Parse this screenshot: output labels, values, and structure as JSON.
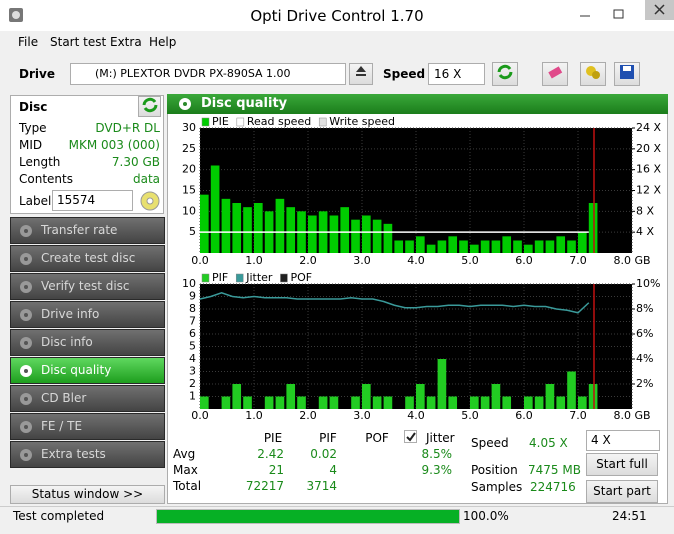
{
  "window": {
    "title": "Opti Drive Control 1.70"
  },
  "menu": [
    "File",
    "Start test",
    "Extra",
    "Help"
  ],
  "toolbar": {
    "drive_label": "Drive",
    "device": "(M:)   PLEXTOR DVDR   PX-890SA 1.00",
    "speed_label": "Speed",
    "speed": "16 X"
  },
  "disc": {
    "title": "Disc",
    "rows": [
      [
        "Type",
        "DVD+R DL"
      ],
      [
        "MID",
        "MKM 003 (000)"
      ],
      [
        "Length",
        "7.30 GB"
      ],
      [
        "Contents",
        "data"
      ]
    ],
    "label_caption": "Label",
    "label_value": "15574"
  },
  "nav": {
    "items": [
      "Transfer rate",
      "Create test disc",
      "Verify test disc",
      "Drive info",
      "Disc info",
      "Disc quality",
      "CD Bler",
      "FE / TE",
      "Extra tests"
    ],
    "selected": 5
  },
  "status_window": "Status window >>",
  "panel": {
    "title": "Disc quality"
  },
  "stats": {
    "columns": [
      "PIE",
      "PIF",
      "POF",
      "Jitter"
    ],
    "jitter_checked": true,
    "avg": {
      "label": "Avg",
      "pie": 2.42,
      "pif": 0.02,
      "jitter": "8.5%"
    },
    "max": {
      "label": "Max",
      "pie": 21,
      "pif": 4,
      "jitter": "9.3%"
    },
    "total": {
      "label": "Total",
      "pie": 72217,
      "pif": 3714
    }
  },
  "run": {
    "speed_label": "Speed",
    "speed": "4.05 X",
    "position_label": "Position",
    "position": "7475 MB",
    "samples_label": "Samples",
    "samples": 224716,
    "speed_select": "4 X",
    "start_full": "Start full",
    "start_part": "Start part"
  },
  "status": {
    "text": "Test completed",
    "progress": 100,
    "progress_label": "100.0%",
    "time": "24:51"
  },
  "chart_data": [
    {
      "type": "bar",
      "grid": true,
      "x": [
        0,
        0.2,
        0.4,
        0.6,
        0.8,
        1,
        1.2,
        1.4,
        1.6,
        1.8,
        2,
        2.2,
        2.4,
        2.6,
        2.8,
        3,
        3.2,
        3.4,
        3.6,
        3.8,
        4,
        4.2,
        4.4,
        4.6,
        4.8,
        5,
        5.2,
        5.4,
        5.6,
        5.8,
        6,
        6.2,
        6.4,
        6.6,
        6.8,
        7,
        7.2
      ],
      "xlim": [
        0,
        8
      ],
      "xticks": [
        {
          "value": 0,
          "label": "0.0"
        },
        {
          "value": 1,
          "label": "1.0"
        },
        {
          "value": 2,
          "label": "2.0"
        },
        {
          "value": 3,
          "label": "3.0"
        },
        {
          "value": 4,
          "label": "4.0"
        },
        {
          "value": 5,
          "label": "5.0"
        },
        {
          "value": 6,
          "label": "6.0"
        },
        {
          "value": 7,
          "label": "7.0"
        },
        {
          "value": 8,
          "label": "8.0 GB"
        }
      ],
      "ylim": [
        0,
        30
      ],
      "yticks": [
        5,
        10,
        15,
        20,
        25,
        30
      ],
      "y2lim": [
        0,
        24
      ],
      "y2ticks": [
        {
          "value": 4,
          "label": "4 X"
        },
        {
          "value": 8,
          "label": "8 X"
        },
        {
          "value": 12,
          "label": "12 X"
        },
        {
          "value": 16,
          "label": "16 X"
        },
        {
          "value": 20,
          "label": "20 X"
        },
        {
          "value": 24,
          "label": "24 X"
        }
      ],
      "series": [
        {
          "name": "PIE",
          "color": "#00cc00",
          "kind": "bar",
          "values": [
            14,
            21,
            13,
            12,
            11,
            12,
            10,
            13,
            11,
            10,
            9,
            10,
            9,
            11,
            8,
            9,
            8,
            7,
            3,
            3,
            4,
            2,
            3,
            4,
            3,
            2,
            3,
            3,
            4,
            3,
            2,
            3,
            3,
            4,
            3,
            5,
            12
          ]
        },
        {
          "name": "Read speed",
          "color": "#ffffff",
          "kind": "line",
          "axis": "y2",
          "values": [
            4,
            4,
            4,
            4,
            4,
            4,
            4,
            4,
            4,
            4,
            4,
            4,
            4,
            4,
            4,
            4,
            4,
            4,
            4,
            4,
            4,
            4,
            4,
            4,
            4,
            4,
            4,
            4,
            4,
            4,
            4,
            4,
            4,
            4,
            4,
            4,
            4
          ]
        },
        {
          "name": "Write speed",
          "color": "#e0e0e0",
          "kind": "line",
          "axis": "y2",
          "values": [
            null,
            null,
            null,
            null,
            null,
            null,
            null,
            null,
            null,
            null,
            null,
            null,
            null,
            null,
            null,
            null,
            null,
            null,
            null,
            null,
            null,
            null,
            null,
            null,
            null,
            null,
            null,
            null,
            null,
            null,
            null,
            null,
            null,
            null,
            null,
            null,
            null
          ]
        }
      ]
    },
    {
      "type": "bar",
      "grid": true,
      "x": [
        0,
        0.2,
        0.4,
        0.6,
        0.8,
        1,
        1.2,
        1.4,
        1.6,
        1.8,
        2,
        2.2,
        2.4,
        2.6,
        2.8,
        3,
        3.2,
        3.4,
        3.6,
        3.8,
        4,
        4.2,
        4.4,
        4.6,
        4.8,
        5,
        5.2,
        5.4,
        5.6,
        5.8,
        6,
        6.2,
        6.4,
        6.6,
        6.8,
        7,
        7.2
      ],
      "xlim": [
        0,
        8
      ],
      "xticks": [
        {
          "value": 0,
          "label": "0.0"
        },
        {
          "value": 1,
          "label": "1.0"
        },
        {
          "value": 2,
          "label": "2.0"
        },
        {
          "value": 3,
          "label": "3.0"
        },
        {
          "value": 4,
          "label": "4.0"
        },
        {
          "value": 5,
          "label": "5.0"
        },
        {
          "value": 6,
          "label": "6.0"
        },
        {
          "value": 7,
          "label": "7.0"
        },
        {
          "value": 8,
          "label": "8.0 GB"
        }
      ],
      "ylim": [
        0,
        10
      ],
      "yticks": [
        1,
        2,
        3,
        4,
        5,
        6,
        7,
        8,
        9,
        10
      ],
      "y2lim": [
        0,
        10
      ],
      "y2ticks": [
        {
          "value": 2,
          "label": "2%"
        },
        {
          "value": 4,
          "label": "4%"
        },
        {
          "value": 6,
          "label": "6%"
        },
        {
          "value": 8,
          "label": "8%"
        },
        {
          "value": 10,
          "label": "10%"
        }
      ],
      "series": [
        {
          "name": "PIF",
          "color": "#22cc22",
          "kind": "bar",
          "values": [
            1,
            0,
            1,
            2,
            1,
            0,
            1,
            1,
            2,
            1,
            0,
            1,
            1,
            0,
            1,
            2,
            1,
            1,
            0,
            1,
            2,
            1,
            4,
            1,
            0,
            1,
            1,
            2,
            1,
            0,
            1,
            1,
            2,
            1,
            3,
            1,
            2
          ]
        },
        {
          "name": "Jitter",
          "color": "#3a9a9a",
          "kind": "line",
          "axis": "y2",
          "values": [
            8.8,
            9.0,
            9.3,
            9.0,
            8.9,
            9.0,
            8.9,
            8.9,
            8.9,
            8.8,
            8.8,
            8.8,
            8.8,
            8.8,
            8.9,
            8.8,
            8.8,
            8.6,
            8.3,
            8.1,
            8.1,
            8.2,
            8.2,
            8.3,
            8.3,
            8.2,
            8.3,
            8.3,
            8.3,
            8.2,
            8.3,
            8.2,
            8.2,
            8.0,
            7.9,
            7.7,
            8.5
          ]
        },
        {
          "name": "POF",
          "color": "#202020",
          "kind": "bar",
          "values": [
            0,
            0,
            0,
            0,
            0,
            0,
            0,
            0,
            0,
            0,
            0,
            0,
            0,
            0,
            0,
            0,
            0,
            0,
            0,
            0,
            0,
            0,
            0,
            0,
            0,
            0,
            0,
            0,
            0,
            0,
            0,
            0,
            0,
            0,
            0,
            0,
            0
          ]
        }
      ]
    }
  ]
}
